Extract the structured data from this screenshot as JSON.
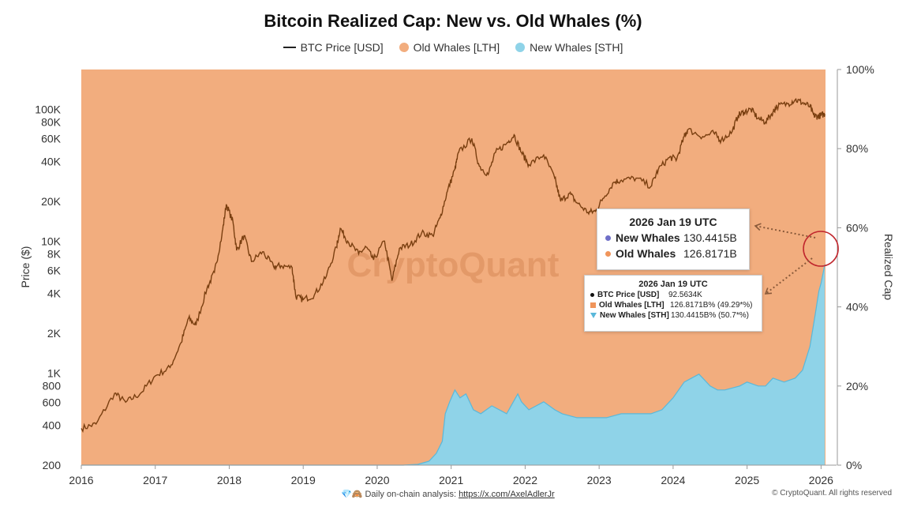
{
  "footer": {
    "prefix": "💎🙈 Daily on-chain analysis: ",
    "link": "https://x.com/AxelAdlerJr",
    "copyright": "© CryptoQuant. All rights reserved"
  },
  "tooltip_large": {
    "date": "2026 Jan 19 UTC",
    "rows": [
      {
        "label": "New Whales",
        "value": "130.4415B",
        "color": "#6f6fc8"
      },
      {
        "label": "Old Whales",
        "value": "126.8171B",
        "color": "#f0955b"
      }
    ]
  },
  "tooltip_small": {
    "date": "2026 Jan 19 UTC",
    "rows": [
      {
        "label": "BTC Price [USD]",
        "value": "92.5634K"
      },
      {
        "label": "Old Whales [LTH]",
        "value": "126.8171B% (49.29*%)"
      },
      {
        "label": "New Whales [STH]",
        "value": "130.4415B% (50.7*%)"
      }
    ]
  },
  "chart_data": {
    "type": "area",
    "title": "Bitcoin Realized Cap: New vs. Old Whales (%)",
    "watermark": "CryptoQuant",
    "legend_position": "top-center",
    "legend": [
      "BTC Price [USD]",
      "Old Whales [LTH]",
      "New Whales [STH]"
    ],
    "colors": {
      "price": "#7a3f10",
      "old": "#f2ad7e",
      "new": "#8fd3e8",
      "new_edge": "#5ab8da"
    },
    "x_axis": {
      "ticks": [
        "2016",
        "2017",
        "2018",
        "2019",
        "2020",
        "2021",
        "2022",
        "2023",
        "2024",
        "2025",
        "2026"
      ],
      "range": [
        2016.0,
        2026.06
      ]
    },
    "y_left": {
      "label": "Price ($)",
      "scale": "log",
      "range": [
        200,
        200000
      ],
      "ticks": [
        {
          "v": 200,
          "t": "200"
        },
        {
          "v": 400,
          "t": "400"
        },
        {
          "v": 600,
          "t": "600"
        },
        {
          "v": 800,
          "t": "800"
        },
        {
          "v": 1000,
          "t": "1K"
        },
        {
          "v": 2000,
          "t": "2K"
        },
        {
          "v": 4000,
          "t": "4K"
        },
        {
          "v": 6000,
          "t": "6K"
        },
        {
          "v": 8000,
          "t": "8K"
        },
        {
          "v": 10000,
          "t": "10K"
        },
        {
          "v": 20000,
          "t": "20K"
        },
        {
          "v": 40000,
          "t": "40K"
        },
        {
          "v": 60000,
          "t": "60K"
        },
        {
          "v": 80000,
          "t": "80K"
        },
        {
          "v": 100000,
          "t": "100K"
        }
      ]
    },
    "y_right": {
      "label": "Realized Cap",
      "range": [
        0,
        100
      ],
      "ticks": [
        {
          "v": 0,
          "t": "0%"
        },
        {
          "v": 20,
          "t": "20%"
        },
        {
          "v": 40,
          "t": "40%"
        },
        {
          "v": 60,
          "t": "60%"
        },
        {
          "v": 80,
          "t": "80%"
        },
        {
          "v": 100,
          "t": "100%"
        }
      ]
    },
    "series": [
      {
        "name": "BTC Price [USD]",
        "axis": "left",
        "type": "line",
        "points": [
          [
            2016.0,
            380
          ],
          [
            2016.2,
            410
          ],
          [
            2016.45,
            700
          ],
          [
            2016.6,
            600
          ],
          [
            2016.8,
            700
          ],
          [
            2017.0,
            950
          ],
          [
            2017.2,
            1100
          ],
          [
            2017.35,
            1700
          ],
          [
            2017.45,
            2600
          ],
          [
            2017.55,
            2300
          ],
          [
            2017.7,
            4400
          ],
          [
            2017.8,
            5800
          ],
          [
            2017.9,
            11000
          ],
          [
            2017.96,
            19000
          ],
          [
            2018.05,
            14000
          ],
          [
            2018.1,
            8500
          ],
          [
            2018.2,
            11000
          ],
          [
            2018.3,
            7000
          ],
          [
            2018.45,
            8300
          ],
          [
            2018.6,
            6400
          ],
          [
            2018.7,
            6500
          ],
          [
            2018.85,
            6300
          ],
          [
            2018.9,
            3800
          ],
          [
            2019.0,
            3600
          ],
          [
            2019.15,
            3900
          ],
          [
            2019.3,
            5200
          ],
          [
            2019.45,
            9000
          ],
          [
            2019.5,
            12500
          ],
          [
            2019.6,
            10000
          ],
          [
            2019.75,
            8000
          ],
          [
            2019.85,
            9000
          ],
          [
            2019.95,
            7200
          ],
          [
            2020.1,
            10000
          ],
          [
            2020.2,
            5000
          ],
          [
            2020.3,
            8800
          ],
          [
            2020.45,
            9400
          ],
          [
            2020.6,
            11500
          ],
          [
            2020.75,
            11000
          ],
          [
            2020.85,
            15000
          ],
          [
            2020.95,
            24000
          ],
          [
            2021.05,
            35000
          ],
          [
            2021.1,
            47000
          ],
          [
            2021.28,
            60000
          ],
          [
            2021.38,
            37000
          ],
          [
            2021.5,
            32000
          ],
          [
            2021.6,
            47000
          ],
          [
            2021.75,
            55000
          ],
          [
            2021.85,
            64000
          ],
          [
            2021.95,
            47000
          ],
          [
            2022.05,
            38000
          ],
          [
            2022.25,
            45000
          ],
          [
            2022.4,
            30000
          ],
          [
            2022.48,
            20000
          ],
          [
            2022.6,
            23000
          ],
          [
            2022.7,
            19500
          ],
          [
            2022.85,
            16500
          ],
          [
            2022.95,
            16800
          ],
          [
            2023.05,
            21000
          ],
          [
            2023.2,
            28000
          ],
          [
            2023.3,
            29000
          ],
          [
            2023.5,
            30000
          ],
          [
            2023.7,
            26000
          ],
          [
            2023.8,
            35000
          ],
          [
            2023.95,
            43000
          ],
          [
            2024.05,
            42000
          ],
          [
            2024.15,
            62000
          ],
          [
            2024.2,
            70000
          ],
          [
            2024.4,
            62000
          ],
          [
            2024.55,
            66000
          ],
          [
            2024.65,
            58000
          ],
          [
            2024.8,
            68000
          ],
          [
            2024.88,
            90000
          ],
          [
            2024.96,
            95000
          ],
          [
            2025.05,
            100000
          ],
          [
            2025.15,
            85000
          ],
          [
            2025.25,
            80000
          ],
          [
            2025.35,
            95000
          ],
          [
            2025.4,
            105000
          ],
          [
            2025.55,
            110000
          ],
          [
            2025.65,
            118000
          ],
          [
            2025.75,
            112000
          ],
          [
            2025.85,
            105000
          ],
          [
            2025.9,
            90000
          ],
          [
            2025.95,
            88000
          ],
          [
            2026.0,
            90000
          ],
          [
            2026.05,
            92000
          ]
        ]
      },
      {
        "name": "New Whales [STH]",
        "axis": "right",
        "type": "area",
        "points": [
          [
            2016.0,
            0
          ],
          [
            2020.35,
            0
          ],
          [
            2020.55,
            0.2
          ],
          [
            2020.7,
            1
          ],
          [
            2020.8,
            3
          ],
          [
            2020.88,
            6
          ],
          [
            2020.92,
            13
          ],
          [
            2020.98,
            16
          ],
          [
            2021.05,
            19
          ],
          [
            2021.12,
            17
          ],
          [
            2021.2,
            18
          ],
          [
            2021.3,
            14
          ],
          [
            2021.4,
            13
          ],
          [
            2021.55,
            15
          ],
          [
            2021.75,
            13
          ],
          [
            2021.9,
            18
          ],
          [
            2021.95,
            16
          ],
          [
            2022.05,
            14
          ],
          [
            2022.25,
            16
          ],
          [
            2022.4,
            14
          ],
          [
            2022.5,
            13
          ],
          [
            2022.7,
            12
          ],
          [
            2022.9,
            12
          ],
          [
            2023.1,
            12
          ],
          [
            2023.3,
            13
          ],
          [
            2023.5,
            13
          ],
          [
            2023.7,
            13
          ],
          [
            2023.85,
            14
          ],
          [
            2024.0,
            17
          ],
          [
            2024.15,
            21
          ],
          [
            2024.25,
            22
          ],
          [
            2024.35,
            23
          ],
          [
            2024.5,
            20
          ],
          [
            2024.6,
            19
          ],
          [
            2024.7,
            19
          ],
          [
            2024.9,
            20
          ],
          [
            2025.0,
            21
          ],
          [
            2025.15,
            20
          ],
          [
            2025.25,
            20
          ],
          [
            2025.35,
            22
          ],
          [
            2025.5,
            21
          ],
          [
            2025.65,
            22
          ],
          [
            2025.75,
            24
          ],
          [
            2025.85,
            30
          ],
          [
            2025.92,
            38
          ],
          [
            2025.97,
            44
          ],
          [
            2026.0,
            46
          ],
          [
            2026.05,
            50.7
          ]
        ]
      }
    ]
  }
}
